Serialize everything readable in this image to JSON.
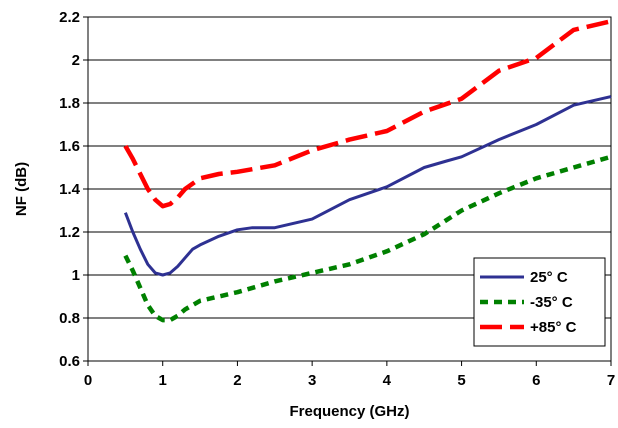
{
  "chart_data": {
    "type": "line",
    "title": "",
    "xlabel": "Frequency (GHz)",
    "ylabel": "NF (dB)",
    "xlim": [
      0,
      7
    ],
    "ylim": [
      0.6,
      2.2
    ],
    "x_ticks": [
      0,
      1,
      2,
      3,
      4,
      5,
      6,
      7
    ],
    "x_tick_labels": [
      "0",
      "1",
      "2",
      "3",
      "4",
      "5",
      "6",
      "7"
    ],
    "y_ticks": [
      0.6,
      0.8,
      1.0,
      1.2,
      1.4,
      1.6,
      1.8,
      2.0,
      2.2
    ],
    "y_tick_labels": [
      "0.6",
      "0.8",
      "1",
      "1.2",
      "1.4",
      "1.6",
      "1.8",
      "2",
      "2.2"
    ],
    "grid": "horizontal",
    "legend_position": "bottom-right",
    "series": [
      {
        "name": "25° C",
        "color": "#2E3192",
        "dash": "solid",
        "points": [
          [
            0.5,
            1.29
          ],
          [
            0.6,
            1.2
          ],
          [
            0.7,
            1.12
          ],
          [
            0.8,
            1.05
          ],
          [
            0.9,
            1.01
          ],
          [
            1.0,
            1.0
          ],
          [
            1.1,
            1.01
          ],
          [
            1.2,
            1.04
          ],
          [
            1.3,
            1.08
          ],
          [
            1.4,
            1.12
          ],
          [
            1.5,
            1.14
          ],
          [
            1.75,
            1.18
          ],
          [
            2.0,
            1.21
          ],
          [
            2.2,
            1.22
          ],
          [
            2.5,
            1.22
          ],
          [
            3.0,
            1.26
          ],
          [
            3.5,
            1.35
          ],
          [
            4.0,
            1.41
          ],
          [
            4.5,
            1.5
          ],
          [
            4.8,
            1.53
          ],
          [
            5.0,
            1.55
          ],
          [
            5.5,
            1.63
          ],
          [
            6.0,
            1.7
          ],
          [
            6.5,
            1.79
          ],
          [
            7.0,
            1.83
          ]
        ]
      },
      {
        "name": "-35° C",
        "color": "#008000",
        "dash": "short",
        "points": [
          [
            0.5,
            1.09
          ],
          [
            0.6,
            1.02
          ],
          [
            0.7,
            0.94
          ],
          [
            0.8,
            0.86
          ],
          [
            0.9,
            0.81
          ],
          [
            1.0,
            0.79
          ],
          [
            1.1,
            0.79
          ],
          [
            1.2,
            0.81
          ],
          [
            1.3,
            0.84
          ],
          [
            1.5,
            0.88
          ],
          [
            1.75,
            0.9
          ],
          [
            2.0,
            0.92
          ],
          [
            2.5,
            0.97
          ],
          [
            3.0,
            1.01
          ],
          [
            3.5,
            1.05
          ],
          [
            4.0,
            1.11
          ],
          [
            4.5,
            1.19
          ],
          [
            5.0,
            1.3
          ],
          [
            5.5,
            1.38
          ],
          [
            6.0,
            1.45
          ],
          [
            6.5,
            1.5
          ],
          [
            7.0,
            1.55
          ]
        ]
      },
      {
        "name": "+85° C",
        "color": "#FF0000",
        "dash": "long",
        "points": [
          [
            0.5,
            1.6
          ],
          [
            0.6,
            1.54
          ],
          [
            0.7,
            1.47
          ],
          [
            0.8,
            1.4
          ],
          [
            0.9,
            1.35
          ],
          [
            1.0,
            1.32
          ],
          [
            1.1,
            1.33
          ],
          [
            1.2,
            1.36
          ],
          [
            1.3,
            1.4
          ],
          [
            1.5,
            1.45
          ],
          [
            1.75,
            1.47
          ],
          [
            2.0,
            1.48
          ],
          [
            2.5,
            1.51
          ],
          [
            3.0,
            1.58
          ],
          [
            3.5,
            1.63
          ],
          [
            4.0,
            1.67
          ],
          [
            4.5,
            1.76
          ],
          [
            5.0,
            1.82
          ],
          [
            5.5,
            1.95
          ],
          [
            6.0,
            2.01
          ],
          [
            6.5,
            2.14
          ],
          [
            7.0,
            2.18
          ]
        ]
      }
    ]
  }
}
